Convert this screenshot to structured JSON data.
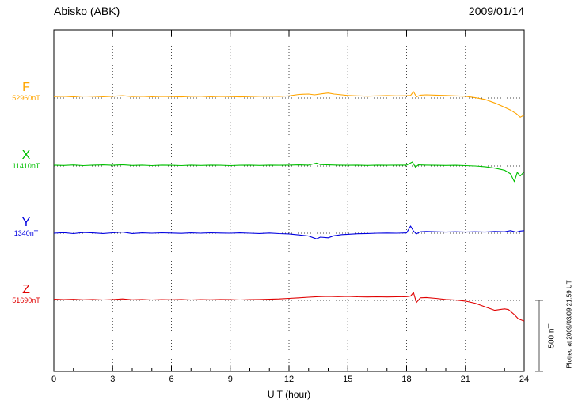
{
  "header": {
    "title": "Abisko (ABK)",
    "date": "2009/01/14"
  },
  "xlabel": "U T (hour)",
  "scale_bar": {
    "label": "500 nT",
    "nt": 500
  },
  "footer_note": "Plotted at 2009/03/09 21:59 UT",
  "chart_data": {
    "type": "line",
    "title": "Abisko (ABK) magnetogram 2009/01/14",
    "xlabel": "U T (hour)",
    "x_range": [
      0,
      24
    ],
    "x_ticks": [
      0,
      3,
      6,
      9,
      12,
      15,
      18,
      21,
      24
    ],
    "grid": "dotted-vertical",
    "y_unit": "nT (deviation from component baseline)",
    "series": [
      {
        "name": "F",
        "baseline_label": "52960nT",
        "baseline_nt": 52960,
        "color": "#FFA500",
        "points": [
          [
            0,
            10
          ],
          [
            0.5,
            12
          ],
          [
            1,
            8
          ],
          [
            1.5,
            14
          ],
          [
            2,
            12
          ],
          [
            2.5,
            9
          ],
          [
            3,
            12
          ],
          [
            3.5,
            16
          ],
          [
            4,
            10
          ],
          [
            4.5,
            12
          ],
          [
            5,
            9
          ],
          [
            5.5,
            11
          ],
          [
            6,
            10
          ],
          [
            6.5,
            8
          ],
          [
            7,
            11
          ],
          [
            7.5,
            12
          ],
          [
            8,
            9
          ],
          [
            8.5,
            11
          ],
          [
            9,
            10
          ],
          [
            9.5,
            8
          ],
          [
            10,
            10
          ],
          [
            10.5,
            12
          ],
          [
            11,
            13
          ],
          [
            11.5,
            11
          ],
          [
            12,
            15
          ],
          [
            12.5,
            25
          ],
          [
            13,
            28
          ],
          [
            13.3,
            22
          ],
          [
            13.7,
            30
          ],
          [
            14,
            35
          ],
          [
            14.3,
            28
          ],
          [
            14.7,
            22
          ],
          [
            15,
            18
          ],
          [
            15.5,
            15
          ],
          [
            16,
            13
          ],
          [
            16.5,
            15
          ],
          [
            17,
            17
          ],
          [
            17.5,
            15
          ],
          [
            18,
            16
          ],
          [
            18.2,
            18
          ],
          [
            18.35,
            45
          ],
          [
            18.5,
            8
          ],
          [
            18.7,
            20
          ],
          [
            19,
            22
          ],
          [
            19.5,
            20
          ],
          [
            20,
            18
          ],
          [
            20.5,
            15
          ],
          [
            21,
            12
          ],
          [
            21.5,
            2
          ],
          [
            22,
            -10
          ],
          [
            22.5,
            -35
          ],
          [
            23,
            -65
          ],
          [
            23.3,
            -85
          ],
          [
            23.6,
            -110
          ],
          [
            23.8,
            -135
          ],
          [
            24,
            -120
          ]
        ]
      },
      {
        "name": "X",
        "baseline_label": "11410nT",
        "baseline_nt": 11410,
        "color": "#00C000",
        "points": [
          [
            0,
            6
          ],
          [
            0.5,
            4
          ],
          [
            1,
            7
          ],
          [
            1.5,
            3
          ],
          [
            2,
            6
          ],
          [
            2.5,
            8
          ],
          [
            3,
            5
          ],
          [
            3.5,
            9
          ],
          [
            4,
            4
          ],
          [
            4.5,
            6
          ],
          [
            5,
            3
          ],
          [
            5.5,
            6
          ],
          [
            6,
            5
          ],
          [
            6.5,
            3
          ],
          [
            7,
            6
          ],
          [
            7.5,
            4
          ],
          [
            8,
            6
          ],
          [
            8.5,
            5
          ],
          [
            9,
            3
          ],
          [
            9.5,
            5
          ],
          [
            10,
            6
          ],
          [
            10.5,
            4
          ],
          [
            11,
            6
          ],
          [
            11.5,
            5
          ],
          [
            12,
            6
          ],
          [
            12.5,
            8
          ],
          [
            13,
            6
          ],
          [
            13.4,
            20
          ],
          [
            13.6,
            10
          ],
          [
            14,
            8
          ],
          [
            14.5,
            6
          ],
          [
            15,
            5
          ],
          [
            15.5,
            6
          ],
          [
            16,
            4
          ],
          [
            16.5,
            6
          ],
          [
            17,
            5
          ],
          [
            17.5,
            6
          ],
          [
            18,
            6
          ],
          [
            18.3,
            28
          ],
          [
            18.45,
            -8
          ],
          [
            18.6,
            8
          ],
          [
            19,
            6
          ],
          [
            19.5,
            5
          ],
          [
            20,
            4
          ],
          [
            20.5,
            5
          ],
          [
            21,
            3
          ],
          [
            21.5,
            0
          ],
          [
            22,
            -5
          ],
          [
            22.5,
            -15
          ],
          [
            23,
            -30
          ],
          [
            23.3,
            -55
          ],
          [
            23.5,
            -110
          ],
          [
            23.65,
            -45
          ],
          [
            23.8,
            -70
          ],
          [
            24,
            -40
          ]
        ]
      },
      {
        "name": "Y",
        "baseline_label": "1340nT",
        "baseline_nt": 1340,
        "color": "#0000E0",
        "points": [
          [
            0,
            0
          ],
          [
            0.5,
            4
          ],
          [
            1,
            -3
          ],
          [
            1.5,
            5
          ],
          [
            2,
            2
          ],
          [
            2.5,
            -2
          ],
          [
            3,
            3
          ],
          [
            3.5,
            8
          ],
          [
            4,
            -2
          ],
          [
            4.5,
            2
          ],
          [
            5,
            0
          ],
          [
            5.5,
            3
          ],
          [
            6,
            1
          ],
          [
            6.5,
            -1
          ],
          [
            7,
            2
          ],
          [
            7.5,
            0
          ],
          [
            8,
            3
          ],
          [
            8.5,
            1
          ],
          [
            9,
            0
          ],
          [
            9.5,
            2
          ],
          [
            10,
            0
          ],
          [
            10.5,
            -2
          ],
          [
            11,
            1
          ],
          [
            11.5,
            -3
          ],
          [
            12,
            -5
          ],
          [
            12.5,
            -12
          ],
          [
            13,
            -20
          ],
          [
            13.4,
            -40
          ],
          [
            13.6,
            -28
          ],
          [
            14,
            -32
          ],
          [
            14.3,
            -18
          ],
          [
            14.7,
            -10
          ],
          [
            15,
            -8
          ],
          [
            15.5,
            -4
          ],
          [
            16,
            -2
          ],
          [
            16.5,
            0
          ],
          [
            17,
            1
          ],
          [
            17.5,
            0
          ],
          [
            18,
            2
          ],
          [
            18.2,
            50
          ],
          [
            18.35,
            15
          ],
          [
            18.5,
            -5
          ],
          [
            18.7,
            10
          ],
          [
            19,
            12
          ],
          [
            19.5,
            10
          ],
          [
            20,
            8
          ],
          [
            20.5,
            10
          ],
          [
            21,
            8
          ],
          [
            21.5,
            10
          ],
          [
            22,
            8
          ],
          [
            22.5,
            12
          ],
          [
            23,
            10
          ],
          [
            23.3,
            18
          ],
          [
            23.6,
            8
          ],
          [
            23.8,
            15
          ],
          [
            24,
            18
          ]
        ]
      },
      {
        "name": "Z",
        "baseline_label": "51690nT",
        "baseline_nt": 51690,
        "color": "#E00000",
        "points": [
          [
            0,
            8
          ],
          [
            0.5,
            5
          ],
          [
            1,
            7
          ],
          [
            1.5,
            4
          ],
          [
            2,
            6
          ],
          [
            2.5,
            3
          ],
          [
            3,
            5
          ],
          [
            3.5,
            10
          ],
          [
            4,
            4
          ],
          [
            4.5,
            6
          ],
          [
            5,
            3
          ],
          [
            5.5,
            5
          ],
          [
            6,
            4
          ],
          [
            6.5,
            6
          ],
          [
            7,
            3
          ],
          [
            7.5,
            5
          ],
          [
            8,
            4
          ],
          [
            8.5,
            6
          ],
          [
            9,
            5
          ],
          [
            9.5,
            3
          ],
          [
            10,
            5
          ],
          [
            10.5,
            6
          ],
          [
            11,
            8
          ],
          [
            11.5,
            10
          ],
          [
            12,
            14
          ],
          [
            12.5,
            18
          ],
          [
            13,
            22
          ],
          [
            13.5,
            26
          ],
          [
            14,
            28
          ],
          [
            14.5,
            26
          ],
          [
            15,
            28
          ],
          [
            15.5,
            25
          ],
          [
            16,
            24
          ],
          [
            16.5,
            25
          ],
          [
            17,
            24
          ],
          [
            17.5,
            25
          ],
          [
            18,
            26
          ],
          [
            18.2,
            30
          ],
          [
            18.35,
            55
          ],
          [
            18.5,
            -15
          ],
          [
            18.7,
            18
          ],
          [
            19,
            20
          ],
          [
            19.5,
            14
          ],
          [
            20,
            6
          ],
          [
            20.5,
            2
          ],
          [
            21,
            -5
          ],
          [
            21.5,
            -20
          ],
          [
            22,
            -45
          ],
          [
            22.5,
            -70
          ],
          [
            23,
            -60
          ],
          [
            23.2,
            -65
          ],
          [
            23.5,
            -100
          ],
          [
            23.7,
            -130
          ],
          [
            24,
            -145
          ]
        ]
      }
    ]
  }
}
